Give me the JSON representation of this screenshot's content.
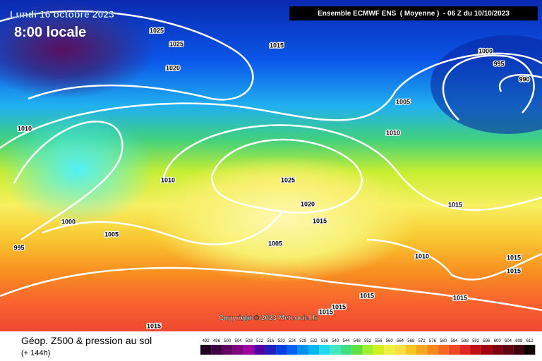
{
  "header": {
    "date": "Lundi 16 octobre 2023",
    "time": "8:00 locale",
    "model": "Ensemble ECMWF ENS  ( Moyenne )  - 06 Z du 10/10/2023"
  },
  "isobar_labels": [
    1025,
    1025,
    1015,
    1020,
    1000,
    995,
    990,
    1005,
    1010,
    1010,
    1010,
    1025,
    1020,
    1015,
    1015,
    1000,
    1005,
    995,
    1005,
    1010,
    1015,
    1015,
    1015,
    1015,
    1015,
    1015,
    1015
  ],
  "copyright": "Copyright © 2023 Meteociel.fr",
  "footer": {
    "title": "Géop. Z500 & pression au sol",
    "lead": "(+ 144h)"
  },
  "legend": [
    492,
    496,
    500,
    504,
    508,
    512,
    516,
    520,
    524,
    528,
    532,
    536,
    540,
    544,
    548,
    552,
    556,
    560,
    564,
    568,
    572,
    576,
    580,
    584,
    588,
    592,
    596,
    600,
    604,
    608,
    612
  ]
}
